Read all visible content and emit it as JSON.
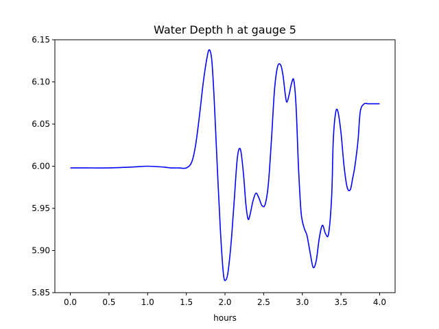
{
  "chart_data": {
    "type": "line",
    "title": "Water Depth h at gauge 5",
    "xlabel": "hours",
    "ylabel": "",
    "xlim": [
      -0.2,
      4.2
    ],
    "ylim": [
      5.85,
      6.15
    ],
    "xticks": [
      0.0,
      0.5,
      1.0,
      1.5,
      2.0,
      2.5,
      3.0,
      3.5,
      4.0
    ],
    "xtick_labels": [
      "0.0",
      "0.5",
      "1.0",
      "1.5",
      "2.0",
      "2.5",
      "3.0",
      "3.5",
      "4.0"
    ],
    "yticks": [
      5.85,
      5.9,
      5.95,
      6.0,
      6.05,
      6.1,
      6.15
    ],
    "ytick_labels": [
      "5.85",
      "5.90",
      "5.95",
      "6.00",
      "6.05",
      "6.10",
      "6.15"
    ],
    "grid": false,
    "series": [
      {
        "color": "#0000ff",
        "x": [
          0.0,
          0.2,
          0.5,
          0.8,
          1.0,
          1.2,
          1.3,
          1.4,
          1.5,
          1.57,
          1.62,
          1.67,
          1.72,
          1.77,
          1.8,
          1.83,
          1.86,
          1.9,
          1.94,
          1.98,
          2.01,
          2.04,
          2.08,
          2.12,
          2.16,
          2.2,
          2.24,
          2.27,
          2.3,
          2.33,
          2.36,
          2.4,
          2.44,
          2.48,
          2.52,
          2.56,
          2.6,
          2.64,
          2.68,
          2.72,
          2.75,
          2.78,
          2.8,
          2.83,
          2.86,
          2.89,
          2.92,
          2.95,
          2.98,
          3.0,
          3.03,
          3.06,
          3.1,
          3.14,
          3.18,
          3.22,
          3.26,
          3.3,
          3.34,
          3.38,
          3.4,
          3.43,
          3.46,
          3.5,
          3.54,
          3.58,
          3.62,
          3.65,
          3.68,
          3.72,
          3.75,
          3.8,
          3.85,
          3.9,
          3.94,
          3.97,
          4.0
        ],
        "y": [
          5.998,
          5.998,
          5.998,
          5.999,
          6.0,
          5.999,
          5.998,
          5.998,
          5.998,
          6.005,
          6.025,
          6.06,
          6.1,
          6.13,
          6.138,
          6.125,
          6.08,
          6.0,
          5.925,
          5.872,
          5.865,
          5.875,
          5.91,
          5.96,
          6.01,
          6.02,
          5.99,
          5.955,
          5.937,
          5.945,
          5.958,
          5.968,
          5.962,
          5.953,
          5.955,
          5.978,
          6.03,
          6.09,
          6.118,
          6.12,
          6.108,
          6.085,
          6.076,
          6.085,
          6.098,
          6.102,
          6.07,
          6.0,
          5.95,
          5.935,
          5.925,
          5.918,
          5.898,
          5.88,
          5.888,
          5.915,
          5.93,
          5.92,
          5.92,
          5.965,
          6.03,
          6.063,
          6.065,
          6.04,
          6.0,
          5.975,
          5.972,
          5.985,
          6.0,
          6.03,
          6.065,
          6.074,
          6.074,
          6.074,
          6.074,
          6.074,
          6.074
        ]
      }
    ]
  }
}
